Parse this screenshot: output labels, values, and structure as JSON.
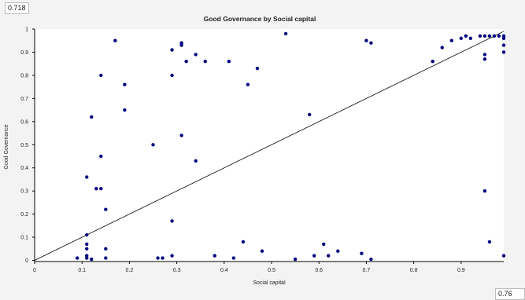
{
  "readouts": {
    "top_value": "0.718",
    "bottom_value": "0.76"
  },
  "chart_data": {
    "type": "scatter",
    "title": "Good Governance by Social capital",
    "xlabel": "Social capital",
    "ylabel": "Good Governance",
    "xlim": [
      0,
      0.99
    ],
    "ylim": [
      -0.005,
      1.0
    ],
    "xticks": [
      0,
      0.1,
      0.2,
      0.3,
      0.4,
      0.5,
      0.6,
      0.7,
      0.8,
      0.9
    ],
    "yticks": [
      0,
      0.1,
      0.2,
      0.3,
      0.4,
      0.5,
      0.6,
      0.7,
      0.8,
      0.9,
      1
    ],
    "grid": false,
    "point_color": "#00007f",
    "line_color": "#000000",
    "fit_line": {
      "x": [
        0,
        0.99
      ],
      "y": [
        0,
        0.99
      ]
    },
    "points": [
      {
        "x": 0.09,
        "y": 0.01
      },
      {
        "x": 0.11,
        "y": 0.01
      },
      {
        "x": 0.11,
        "y": 0.02
      },
      {
        "x": 0.12,
        "y": 0.005
      },
      {
        "x": 0.11,
        "y": 0.05
      },
      {
        "x": 0.11,
        "y": 0.07
      },
      {
        "x": 0.11,
        "y": 0.11
      },
      {
        "x": 0.11,
        "y": 0.36
      },
      {
        "x": 0.12,
        "y": 0.62
      },
      {
        "x": 0.13,
        "y": 0.31
      },
      {
        "x": 0.14,
        "y": 0.31
      },
      {
        "x": 0.14,
        "y": 0.45
      },
      {
        "x": 0.14,
        "y": 0.8
      },
      {
        "x": 0.15,
        "y": 0.22
      },
      {
        "x": 0.15,
        "y": 0.05
      },
      {
        "x": 0.15,
        "y": 0.01
      },
      {
        "x": 0.17,
        "y": 0.95
      },
      {
        "x": 0.19,
        "y": 0.76
      },
      {
        "x": 0.19,
        "y": 0.65
      },
      {
        "x": 0.25,
        "y": 0.5
      },
      {
        "x": 0.26,
        "y": 0.01
      },
      {
        "x": 0.27,
        "y": 0.01
      },
      {
        "x": 0.29,
        "y": 0.91
      },
      {
        "x": 0.29,
        "y": 0.8
      },
      {
        "x": 0.29,
        "y": 0.17
      },
      {
        "x": 0.29,
        "y": 0.02
      },
      {
        "x": 0.31,
        "y": 0.93
      },
      {
        "x": 0.31,
        "y": 0.94
      },
      {
        "x": 0.31,
        "y": 0.54
      },
      {
        "x": 0.32,
        "y": 0.86
      },
      {
        "x": 0.34,
        "y": 0.89
      },
      {
        "x": 0.34,
        "y": 0.43
      },
      {
        "x": 0.36,
        "y": 0.86
      },
      {
        "x": 0.38,
        "y": 0.02
      },
      {
        "x": 0.41,
        "y": 0.86
      },
      {
        "x": 0.42,
        "y": 0.01
      },
      {
        "x": 0.44,
        "y": 0.08
      },
      {
        "x": 0.45,
        "y": 0.76
      },
      {
        "x": 0.47,
        "y": 0.83
      },
      {
        "x": 0.48,
        "y": 0.04
      },
      {
        "x": 0.53,
        "y": 0.98
      },
      {
        "x": 0.55,
        "y": 0.005
      },
      {
        "x": 0.58,
        "y": 0.63
      },
      {
        "x": 0.59,
        "y": 0.02
      },
      {
        "x": 0.61,
        "y": 0.07
      },
      {
        "x": 0.62,
        "y": 0.02
      },
      {
        "x": 0.64,
        "y": 0.04
      },
      {
        "x": 0.69,
        "y": 0.03
      },
      {
        "x": 0.7,
        "y": 0.95
      },
      {
        "x": 0.71,
        "y": 0.94
      },
      {
        "x": 0.71,
        "y": 0.005
      },
      {
        "x": 0.84,
        "y": 0.86
      },
      {
        "x": 0.86,
        "y": 0.92
      },
      {
        "x": 0.88,
        "y": 0.95
      },
      {
        "x": 0.9,
        "y": 0.96
      },
      {
        "x": 0.91,
        "y": 0.97
      },
      {
        "x": 0.92,
        "y": 0.96
      },
      {
        "x": 0.94,
        "y": 0.97
      },
      {
        "x": 0.95,
        "y": 0.97
      },
      {
        "x": 0.95,
        "y": 0.89
      },
      {
        "x": 0.95,
        "y": 0.87
      },
      {
        "x": 0.95,
        "y": 0.3
      },
      {
        "x": 0.96,
        "y": 0.97
      },
      {
        "x": 0.96,
        "y": 0.08
      },
      {
        "x": 0.97,
        "y": 0.97
      },
      {
        "x": 0.98,
        "y": 0.97
      },
      {
        "x": 0.99,
        "y": 0.97
      },
      {
        "x": 0.99,
        "y": 0.96
      },
      {
        "x": 0.99,
        "y": 0.93
      },
      {
        "x": 0.99,
        "y": 0.9
      },
      {
        "x": 0.99,
        "y": 0.02
      }
    ]
  }
}
